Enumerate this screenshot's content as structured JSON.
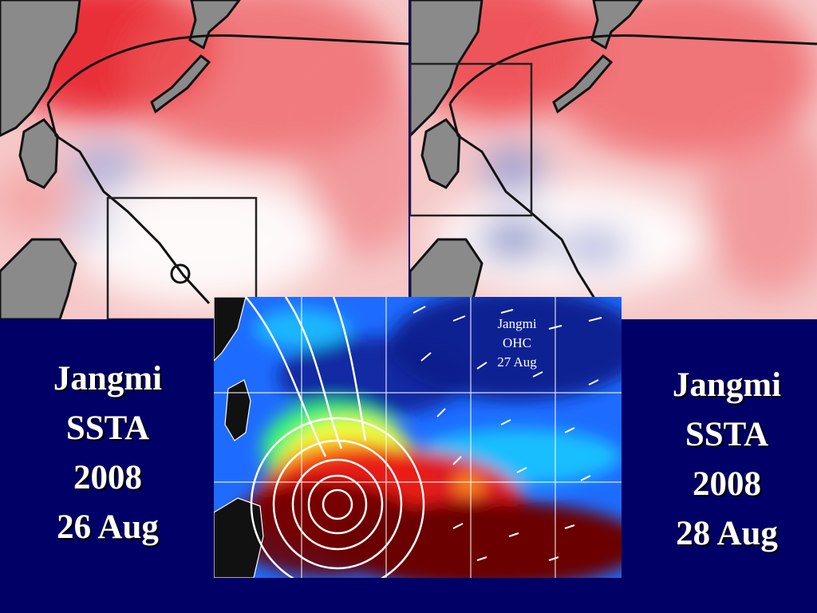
{
  "slide": {
    "background": "#000066",
    "left_caption": {
      "name": "Jangmi",
      "field": "SSTA",
      "year": "2008",
      "date": "26 Aug"
    },
    "right_caption": {
      "name": "Jangmi",
      "field": "SSTA",
      "year": "2008",
      "date": "28 Aug"
    },
    "ohc_label": {
      "name": "Jangmi",
      "field": "OHC",
      "date": "27 Aug"
    }
  },
  "figures": {
    "left_ssta_map": {
      "image": "sea-surface-temperature-anomaly-map",
      "palette": [
        "#e8202a",
        "#f4a0a0",
        "#ffffff",
        "#aab0dd"
      ]
    },
    "right_ssta_map": {
      "image": "sea-surface-temperature-anomaly-map",
      "palette": [
        "#e8202a",
        "#f4a0a0",
        "#ffffff",
        "#7f88c8"
      ]
    },
    "ohc_map": {
      "image": "ocean-heat-content-map-with-wind-vectors",
      "palette": [
        "#0a1a8c",
        "#1e6cff",
        "#19c8ff",
        "#3cff6e",
        "#ffff3c",
        "#ff8a1e",
        "#e81414",
        "#6a0000"
      ]
    }
  }
}
